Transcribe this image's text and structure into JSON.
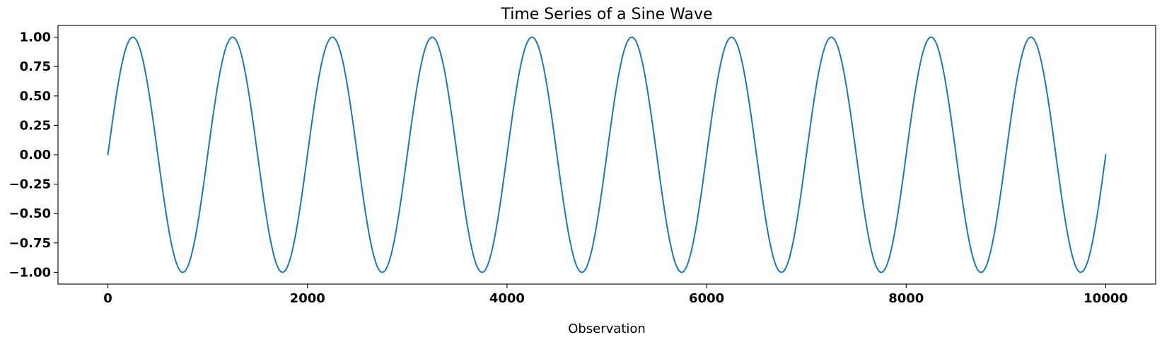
{
  "chart_data": {
    "type": "line",
    "title": "Time Series of a Sine Wave",
    "xlabel": "Observation",
    "ylabel": "",
    "xlim": [
      -500,
      10500
    ],
    "ylim": [
      -1.1,
      1.1
    ],
    "xticks": [
      0,
      2000,
      4000,
      6000,
      8000,
      10000
    ],
    "xtick_labels": [
      "0",
      "2000",
      "4000",
      "6000",
      "8000",
      "10000"
    ],
    "yticks": [
      1.0,
      0.75,
      0.5,
      0.25,
      0.0,
      -0.25,
      -0.5,
      -0.75,
      -1.0
    ],
    "ytick_labels": [
      "1.00",
      "0.75",
      "0.50",
      "0.25",
      "0.00",
      "−0.25",
      "−0.50",
      "−0.75",
      "−1.00"
    ],
    "grid": false,
    "series": [
      {
        "color": "#1f77b4",
        "function": "sin(2*pi*x/1000)",
        "x_start": 0,
        "x_end": 10000,
        "amplitude": 1.0,
        "period": 1000,
        "samples": 10000
      }
    ]
  }
}
